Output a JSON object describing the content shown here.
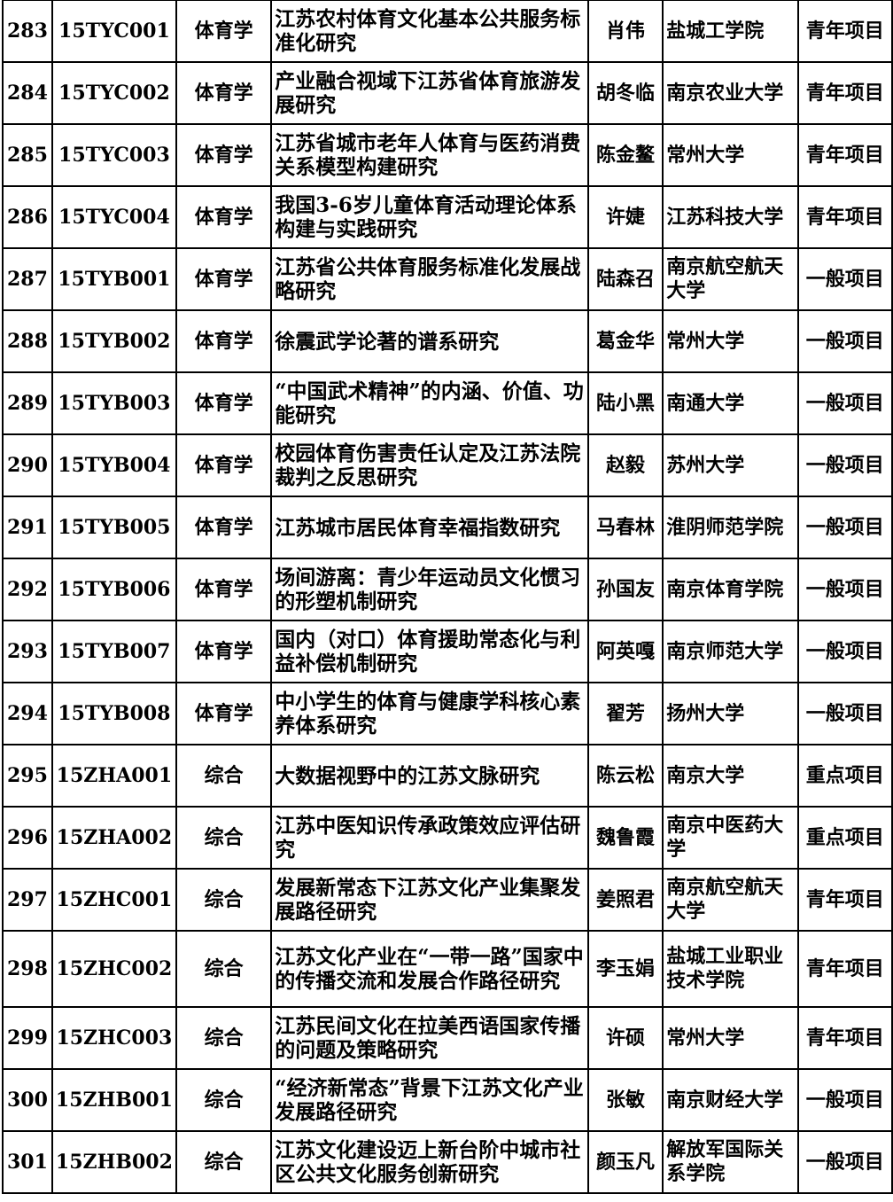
{
  "rows": [
    [
      "283",
      "15TYC001",
      "体育学",
      "江苏农村体育文化基本公共服务标准化研究",
      "肖伟",
      "盐城工学院",
      "青年项目"
    ],
    [
      "284",
      "15TYC002",
      "体育学",
      "产业融合视域下江苏省体育旅游发展研究",
      "胡冬临",
      "南京农业大学",
      "青年项目"
    ],
    [
      "285",
      "15TYC003",
      "体育学",
      "江苏省城市老年人体育与医药消费关系模型构建研究",
      "陈金鳌",
      "常州大学",
      "青年项目"
    ],
    [
      "286",
      "15TYC004",
      "体育学",
      "我国3-6岁儿童体育活动理论体系构建与实践研究",
      "许婕",
      "江苏科技大学",
      "青年项目"
    ],
    [
      "287",
      "15TYB001",
      "体育学",
      "江苏省公共体育服务标准化发展战略研究",
      "陆森召",
      "南京航空航天大学",
      "一般项目"
    ],
    [
      "288",
      "15TYB002",
      "体育学",
      "徐震武学论著的谱系研究",
      "葛金华",
      "常州大学",
      "一般项目"
    ],
    [
      "289",
      "15TYB003",
      "体育学",
      "“中国武术精神”的内涵、价值、功能研究",
      "陆小黑",
      "南通大学",
      "一般项目"
    ],
    [
      "290",
      "15TYB004",
      "体育学",
      "校园体育伤害责任认定及江苏法院裁判之反思研究",
      "赵毅",
      "苏州大学",
      "一般项目"
    ],
    [
      "291",
      "15TYB005",
      "体育学",
      "江苏城市居民体育幸福指数研究",
      "马春林",
      "淮阴师范学院",
      "一般项目"
    ],
    [
      "292",
      "15TYB006",
      "体育学",
      "场间游离：青少年运动员文化惯习的形塑机制研究",
      "孙国友",
      "南京体育学院",
      "一般项目"
    ],
    [
      "293",
      "15TYB007",
      "体育学",
      "国内（对口）体育援助常态化与利益补偿机制研究",
      "阿英嘎",
      "南京师范大学",
      "一般项目"
    ],
    [
      "294",
      "15TYB008",
      "体育学",
      "中小学生的体育与健康学科核心素养体系研究",
      "翟芳",
      "扬州大学",
      "一般项目"
    ],
    [
      "295",
      "15ZHA001",
      "综合",
      "大数据视野中的江苏文脉研究",
      "陈云松",
      "南京大学",
      "重点项目"
    ],
    [
      "296",
      "15ZHA002",
      "综合",
      "江苏中医知识传承政策效应评估研究",
      "魏鲁霞",
      "南京中医药大学",
      "重点项目"
    ],
    [
      "297",
      "15ZHC001",
      "综合",
      "发展新常态下江苏文化产业集聚发展路径研究",
      "姜照君",
      "南京航空航天大学",
      "青年项目"
    ],
    [
      "298",
      "15ZHC002",
      "综合",
      "江苏文化产业在“一带一路”国家中的传播交流和发展合作路径研究",
      "李玉娟",
      "盐城工业职业技术学院",
      "青年项目"
    ],
    [
      "299",
      "15ZHC003",
      "综合",
      "江苏民间文化在拉美西语国家传播的问题及策略研究",
      "许硕",
      "常州大学",
      "青年项目"
    ],
    [
      "300",
      "15ZHB001",
      "综合",
      "“经济新常态”背景下江苏文化产业发展路径研究",
      "张敏",
      "南京财经大学",
      "一般项目"
    ],
    [
      "301",
      "15ZHB002",
      "综合",
      "江苏文化建设迈上新台阶中城市社区公共文化服务创新研究",
      "颜玉凡",
      "解放军国际关系学院",
      "一般项目"
    ]
  ]
}
